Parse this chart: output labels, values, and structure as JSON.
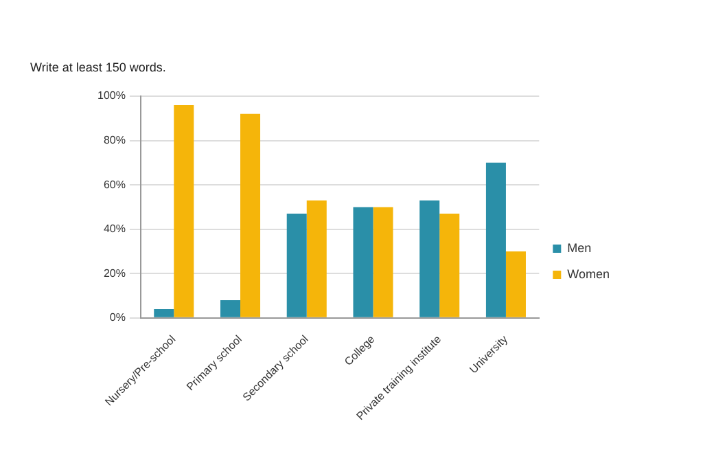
{
  "chart_data": {
    "type": "bar",
    "annotations": [
      "Write at least 150 words."
    ],
    "categories": [
      "Nursery/Pre-school",
      "Primary school",
      "Secondary school",
      "College",
      "Private training institute",
      "University"
    ],
    "series": [
      {
        "name": "Men",
        "color": "#2a8fa8",
        "values": [
          4,
          8,
          47,
          50,
          53,
          70
        ]
      },
      {
        "name": "Women",
        "color": "#f5b50a",
        "values": [
          96,
          92,
          53,
          50,
          47,
          30
        ]
      }
    ],
    "ylim": [
      0,
      100
    ],
    "yticks": [
      {
        "value": 0,
        "label": "0%"
      },
      {
        "value": 20,
        "label": "20%"
      },
      {
        "value": 40,
        "label": "40%"
      },
      {
        "value": 60,
        "label": "60%"
      },
      {
        "value": 80,
        "label": "80%"
      },
      {
        "value": 100,
        "label": "100%"
      }
    ],
    "grid": "y",
    "legend": "right"
  }
}
